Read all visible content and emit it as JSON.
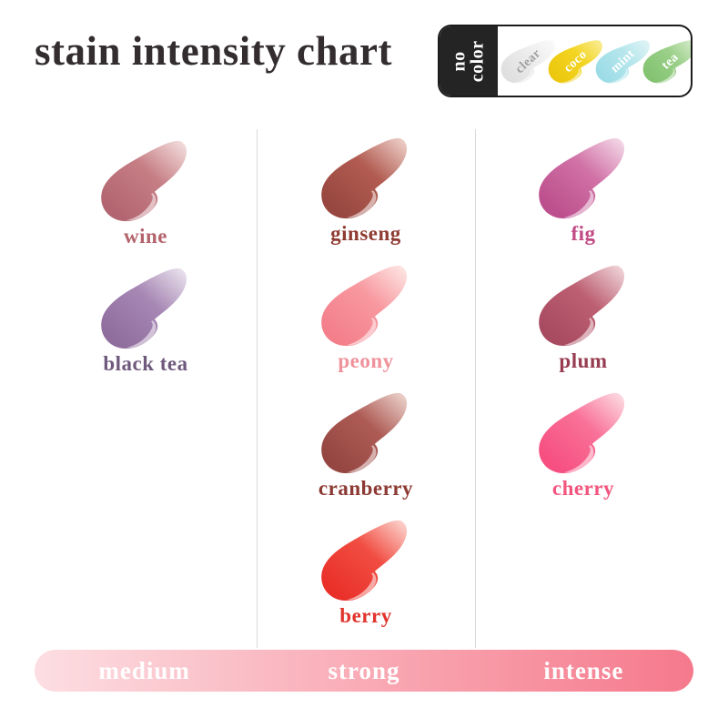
{
  "title": "stain intensity chart",
  "no_color": {
    "label": "no color",
    "swatches": [
      {
        "name": "clear",
        "light": "#fbfbfb",
        "main": "#ededed",
        "dark": "#dfdfdf",
        "label": "#a0a0a0"
      },
      {
        "name": "coco",
        "light": "#f9ee9e",
        "main": "#f3d522",
        "dark": "#ecc70e",
        "label": "#ffffff"
      },
      {
        "name": "mint",
        "light": "#e2f5f7",
        "main": "#b5e6ec",
        "dark": "#9cdce6",
        "label": "#ffffff"
      },
      {
        "name": "tea",
        "light": "#def0d4",
        "main": "#9bd089",
        "dark": "#84c372",
        "label": "#ffffff"
      }
    ]
  },
  "columns": [
    {
      "intensity": "medium",
      "shades": [
        {
          "name": "wine",
          "light": "#f6e3e2",
          "main": "#c67e85",
          "dark": "#b26570",
          "label": "#b4636c"
        },
        {
          "name": "black tea",
          "light": "#eee8f1",
          "main": "#a787b4",
          "dark": "#8f6d9d",
          "label": "#6f5a7d"
        }
      ]
    },
    {
      "intensity": "strong",
      "shades": [
        {
          "name": "ginseng",
          "light": "#f1d7d0",
          "main": "#b25c52",
          "dark": "#97473f",
          "label": "#8f3c33"
        },
        {
          "name": "peony",
          "light": "#fdebe8",
          "main": "#f8989f",
          "dark": "#f37f8b",
          "label": "#f0929b"
        },
        {
          "name": "cranberry",
          "light": "#f0d9d3",
          "main": "#ae5b55",
          "dark": "#954641",
          "label": "#8c3a33"
        },
        {
          "name": "berry",
          "light": "#fcdcd6",
          "main": "#f14d42",
          "dark": "#e93029",
          "label": "#e0342c"
        }
      ]
    },
    {
      "intensity": "intense",
      "shades": [
        {
          "name": "fig",
          "light": "#f6dfec",
          "main": "#d172a6",
          "dark": "#bc4f8d",
          "label": "#c24a84"
        },
        {
          "name": "plum",
          "light": "#f3dcdf",
          "main": "#bd6073",
          "dark": "#a84a60",
          "label": "#983d51"
        },
        {
          "name": "cherry",
          "light": "#fde1e7",
          "main": "#f97197",
          "dark": "#f64f80",
          "label": "#f2557e"
        }
      ]
    }
  ],
  "intensity_bar": {
    "labels": [
      "medium",
      "strong",
      "intense"
    ],
    "gradient": [
      "#fcdee2",
      "#f9a9b4",
      "#f5798c"
    ]
  },
  "chart_data": {
    "type": "table",
    "title": "stain intensity chart",
    "columns": [
      "medium",
      "strong",
      "intense"
    ],
    "groups": {
      "medium": [
        "wine",
        "black tea"
      ],
      "strong": [
        "ginseng",
        "peony",
        "cranberry",
        "berry"
      ],
      "intense": [
        "fig",
        "plum",
        "cherry"
      ]
    },
    "no_color_options": [
      "clear",
      "coco",
      "mint",
      "tea"
    ]
  }
}
